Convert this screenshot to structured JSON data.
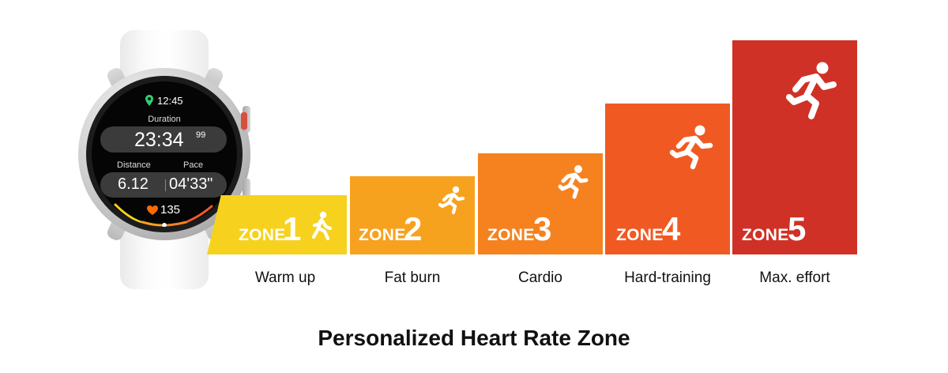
{
  "watch": {
    "time": "12:45",
    "duration_label": "Duration",
    "duration_value": "23:34",
    "duration_fraction": "99",
    "distance_label": "Distance",
    "pace_label": "Pace",
    "distance_value": "6.12",
    "pace_value": "04'33\"",
    "heart_rate": "135",
    "icons": [
      "location-pin-icon",
      "heart-icon"
    ],
    "accent_colors": [
      "#2ecc71",
      "#ff6a00"
    ]
  },
  "zones": [
    {
      "word": "ZONE",
      "number": "1",
      "name": "Warm up",
      "color": "#f6d21e",
      "icon": "walking-icon"
    },
    {
      "word": "ZONE",
      "number": "2",
      "name": "Fat burn",
      "color": "#f7a21f",
      "icon": "running-icon"
    },
    {
      "word": "ZONE",
      "number": "3",
      "name": "Cardio",
      "color": "#f6821f",
      "icon": "running-icon"
    },
    {
      "word": "ZONE",
      "number": "4",
      "name": "Hard-training",
      "color": "#f05a22",
      "icon": "running-fast-icon"
    },
    {
      "word": "ZONE",
      "number": "5",
      "name": "Max. effort",
      "color": "#d03126",
      "icon": "sprinting-icon"
    }
  ],
  "title": "Personalized Heart Rate Zone"
}
